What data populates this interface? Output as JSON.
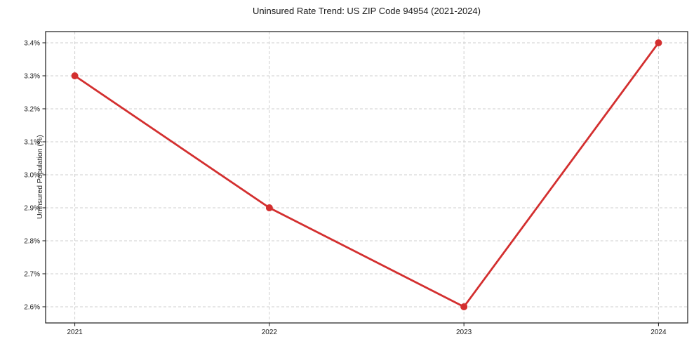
{
  "title": "Uninsured Rate Trend: US ZIP Code 94954 (2021-2024)",
  "chart_data": {
    "type": "line",
    "title": "Uninsured Rate Trend: US ZIP Code 94954 (2021-2024)",
    "xlabel": "",
    "ylabel": "Uninsured Population (%)",
    "categories": [
      "2021",
      "2022",
      "2023",
      "2024"
    ],
    "x": [
      2021,
      2022,
      2023,
      2024
    ],
    "values": [
      3.3,
      2.9,
      2.6,
      3.4
    ],
    "value_labels": [
      "3.3%",
      "2.9%",
      "2.6%",
      "3.4%"
    ],
    "yticks": [
      2.6,
      2.7,
      2.8,
      2.9,
      3.0,
      3.1,
      3.2,
      3.3,
      3.4
    ],
    "ytick_labels": [
      "2.6%",
      "2.7%",
      "2.8%",
      "2.9%",
      "3.0%",
      "3.1%",
      "3.2%",
      "3.3%",
      "3.4%"
    ],
    "xlim": [
      2020.85,
      2024.15
    ],
    "ylim": [
      2.551,
      3.434
    ],
    "grid": "dashed",
    "legend": "none",
    "line_color": "#d32f2f",
    "marker_color": "#d32f2f",
    "grid_color": "#cfcfcf",
    "spine_color": "#1a1a1a",
    "text_color": "#1a1a1a"
  }
}
